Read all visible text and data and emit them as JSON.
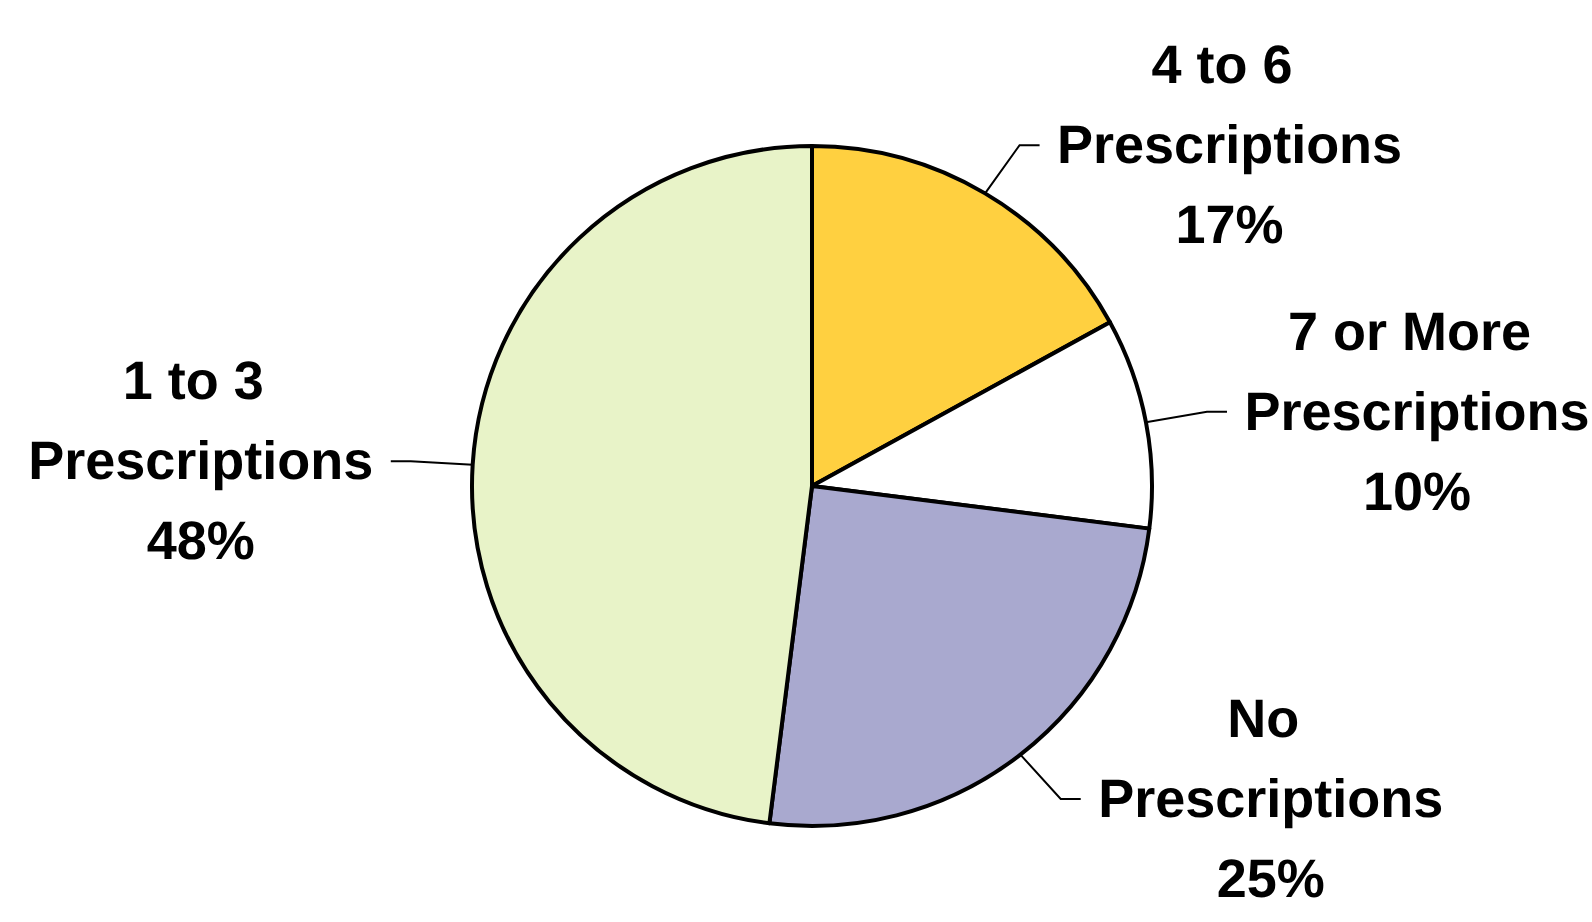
{
  "chart_data": {
    "type": "pie",
    "categories": [
      "4 to 6 Prescriptions",
      "7 or More Prescriptions",
      "No Prescriptions",
      "1 to 3 Prescriptions"
    ],
    "values": [
      17,
      10,
      25,
      48
    ],
    "value_labels": [
      "17%",
      "10%",
      "25%",
      "48%"
    ],
    "colors": [
      "#ffd040",
      "#ffffff",
      "#a9a9cf",
      "#e8f3c8"
    ],
    "legend": false
  }
}
